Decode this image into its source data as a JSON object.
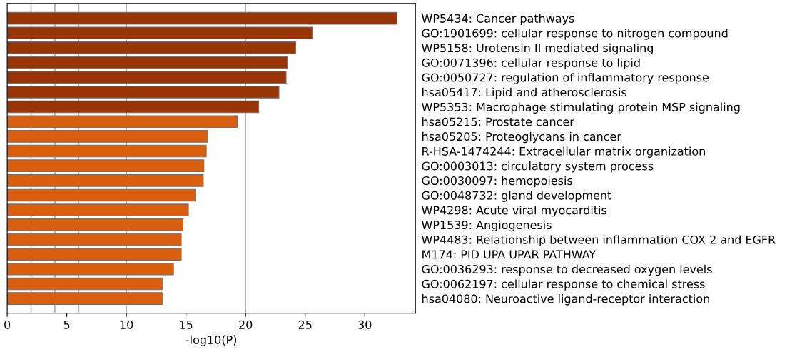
{
  "chart_data": {
    "type": "bar",
    "orientation": "horizontal",
    "xlabel": "-log10(P)",
    "categories": [
      "WP5434: Cancer pathways",
      "GO:1901699: cellular response to nitrogen compound",
      "WP5158: Urotensin II mediated signaling",
      "GO:0071396: cellular response to lipid",
      "GO:0050727: regulation of inflammatory response",
      "hsa05417: Lipid and atherosclerosis",
      "WP5353: Macrophage stimulating protein MSP signaling",
      "hsa05215: Prostate cancer",
      "hsa05205: Proteoglycans in cancer",
      "R-HSA-1474244: Extracellular matrix organization",
      "GO:0003013: circulatory system process",
      "GO:0030097: hemopoiesis",
      "GO:0048732: gland development",
      "WP4298: Acute viral myocarditis",
      "WP1539: Angiogenesis",
      "WP4483: Relationship between inflammation COX 2 and EGFR",
      "M174: PID UPA UPAR PATHWAY",
      "GO:0036293: response to decreased oxygen levels",
      "GO:0062197: cellular response to chemical stress",
      "hsa04080: Neuroactive ligand-receptor interaction"
    ],
    "values": [
      32.7,
      25.6,
      24.2,
      23.5,
      23.4,
      22.8,
      21.1,
      19.3,
      16.8,
      16.7,
      16.5,
      16.45,
      15.8,
      15.2,
      14.75,
      14.6,
      14.6,
      13.95,
      13.0,
      13.0
    ],
    "colors": [
      "#993404",
      "#993404",
      "#993404",
      "#993404",
      "#993404",
      "#993404",
      "#993404",
      "#d95f0e",
      "#d95f0e",
      "#d95f0e",
      "#d95f0e",
      "#d95f0e",
      "#d95f0e",
      "#d95f0e",
      "#d95f0e",
      "#d95f0e",
      "#d95f0e",
      "#d95f0e",
      "#d95f0e",
      "#d95f0e"
    ],
    "xlim": [
      0,
      34.25
    ],
    "xticks": [
      0,
      5,
      10,
      15,
      20,
      25,
      30
    ],
    "ref_lines": [
      {
        "axis": "x",
        "value": 2,
        "color": "#b0b0b0"
      },
      {
        "axis": "x",
        "value": 4,
        "color": "#b0b0b0"
      },
      {
        "axis": "x",
        "value": 6,
        "color": "#b0b0b0"
      },
      {
        "axis": "x",
        "value": 10,
        "color": "#b0b0b0"
      },
      {
        "axis": "x",
        "value": 20,
        "color": "#b0b0b0"
      }
    ],
    "grid": false,
    "legend": false
  }
}
